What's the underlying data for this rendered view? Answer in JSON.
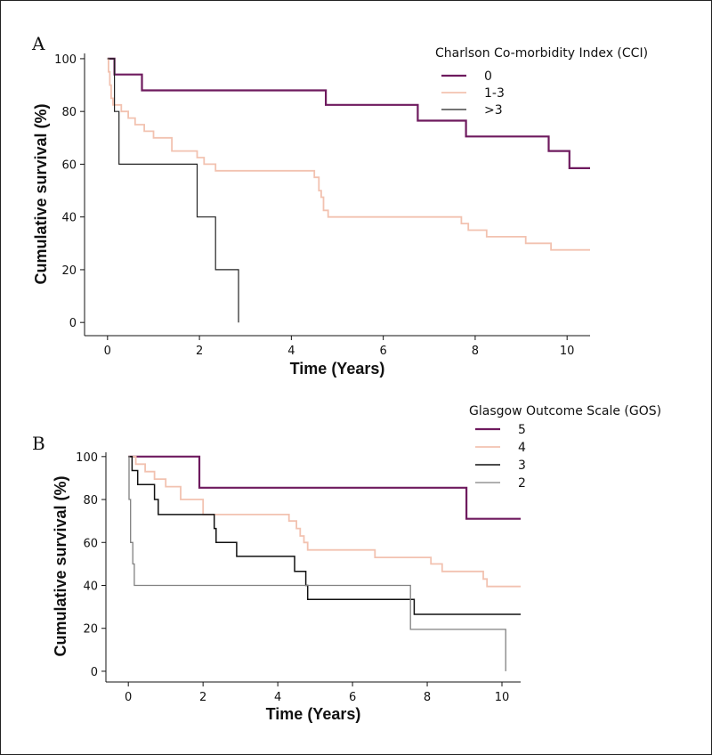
{
  "chart_data": [
    {
      "panel": "A",
      "type": "line",
      "xlabel": "Time (Years)",
      "ylabel": "Cumulative survival (%)",
      "xlim": [
        -0.5,
        10.5
      ],
      "ylim": [
        -5,
        102
      ],
      "xticks": [
        0,
        2,
        4,
        6,
        8,
        10
      ],
      "yticks": [
        0,
        20,
        40,
        60,
        80,
        100
      ],
      "legend_title": "Charlson Co-morbidity Index (CCI)",
      "legend_position": "top-right",
      "series": [
        {
          "name": "0",
          "color": "#6e1a5e",
          "width": 2.2,
          "x": [
            0,
            0.15,
            0.15,
            0.75,
            0.75,
            4.75,
            4.75,
            6.75,
            6.75,
            7.8,
            7.8,
            9.6,
            9.6,
            10.05,
            10.05,
            10.5
          ],
          "y": [
            100,
            100,
            94,
            94,
            88,
            88,
            82.5,
            82.5,
            76.5,
            76.5,
            70.5,
            70.5,
            65,
            65,
            58.5,
            58.5
          ]
        },
        {
          "name": "1-3",
          "color": "#f2c2b0",
          "width": 1.8,
          "x": [
            0,
            0.02,
            0.02,
            0.05,
            0.05,
            0.08,
            0.08,
            0.12,
            0.12,
            0.3,
            0.3,
            0.45,
            0.45,
            0.6,
            0.6,
            0.8,
            0.8,
            1.0,
            1.0,
            1.4,
            1.4,
            1.95,
            1.95,
            2.1,
            2.1,
            2.35,
            2.35,
            4.5,
            4.5,
            4.6,
            4.6,
            4.65,
            4.65,
            4.7,
            4.7,
            4.8,
            4.8,
            7.7,
            7.7,
            7.85,
            7.85,
            8.25,
            8.25,
            9.1,
            9.1,
            9.65,
            9.65,
            10.5
          ],
          "y": [
            100,
            100,
            95,
            95,
            90,
            90,
            85,
            85,
            82.5,
            82.5,
            80,
            80,
            77.5,
            77.5,
            75,
            75,
            72.5,
            72.5,
            70,
            70,
            65,
            65,
            62.5,
            62.5,
            60,
            60,
            57.5,
            57.5,
            55,
            55,
            50,
            50,
            47.5,
            47.5,
            42.5,
            42.5,
            40,
            40,
            37.5,
            37.5,
            35,
            35,
            32.5,
            32.5,
            30,
            30,
            27.5,
            27.5
          ]
        },
        {
          "name": ">3",
          "color": "#222222",
          "width": 1.2,
          "x": [
            0,
            0.15,
            0.15,
            0.25,
            0.25,
            1.95,
            1.95,
            2.35,
            2.35,
            2.85,
            2.85
          ],
          "y": [
            100,
            100,
            80,
            80,
            60,
            60,
            40,
            40,
            20,
            20,
            0
          ]
        }
      ]
    },
    {
      "panel": "B",
      "type": "line",
      "xlabel": "Time (Years)",
      "ylabel": "Cumulative survival (%)",
      "xlim": [
        -0.6,
        10.5
      ],
      "ylim": [
        -5,
        102
      ],
      "xticks": [
        0,
        2,
        4,
        6,
        8,
        10
      ],
      "yticks": [
        0,
        20,
        40,
        60,
        80,
        100
      ],
      "legend_title": "Glasgow Outcome Scale (GOS)",
      "legend_position": "top-right",
      "series": [
        {
          "name": "5",
          "color": "#6e1a5e",
          "width": 2.2,
          "x": [
            0,
            1.9,
            1.9,
            9.05,
            9.05,
            10.5
          ],
          "y": [
            100,
            100,
            85.5,
            85.5,
            71,
            71
          ]
        },
        {
          "name": "4",
          "color": "#f2c2b0",
          "width": 1.8,
          "x": [
            0,
            0.2,
            0.2,
            0.45,
            0.45,
            0.7,
            0.7,
            1.0,
            1.0,
            1.4,
            1.4,
            2.0,
            2.0,
            4.3,
            4.3,
            4.5,
            4.5,
            4.6,
            4.6,
            4.7,
            4.7,
            4.8,
            4.8,
            6.6,
            6.6,
            8.1,
            8.1,
            8.4,
            8.4,
            9.5,
            9.5,
            9.6,
            9.6,
            10.5
          ],
          "y": [
            100,
            100,
            96.5,
            96.5,
            93,
            93,
            89.5,
            89.5,
            86,
            86,
            80,
            80,
            73,
            73,
            70,
            70,
            66.5,
            66.5,
            63,
            63,
            60,
            60,
            56.5,
            56.5,
            53,
            53,
            50,
            50,
            46.5,
            46.5,
            43,
            43,
            39.5,
            39.5
          ]
        },
        {
          "name": "3",
          "color": "#111111",
          "width": 1.5,
          "x": [
            0,
            0.1,
            0.1,
            0.25,
            0.25,
            0.7,
            0.7,
            0.8,
            0.8,
            2.3,
            2.3,
            2.35,
            2.35,
            2.9,
            2.9,
            4.45,
            4.45,
            4.75,
            4.75,
            4.8,
            4.8,
            7.65,
            7.65,
            10.5
          ],
          "y": [
            100,
            100,
            93.5,
            93.5,
            87,
            87,
            80,
            80,
            73,
            73,
            66.5,
            66.5,
            60,
            60,
            53.5,
            53.5,
            46.5,
            46.5,
            40,
            40,
            33.5,
            33.5,
            26.5,
            26.5
          ]
        },
        {
          "name": "2",
          "color": "#808080",
          "width": 1.3,
          "x": [
            0,
            0.02,
            0.02,
            0.06,
            0.06,
            0.12,
            0.12,
            0.16,
            0.16,
            7.55,
            7.55,
            10.1,
            10.1
          ],
          "y": [
            100,
            100,
            80,
            80,
            60,
            60,
            50,
            50,
            40,
            40,
            19.5,
            19.5,
            0
          ]
        }
      ]
    }
  ]
}
